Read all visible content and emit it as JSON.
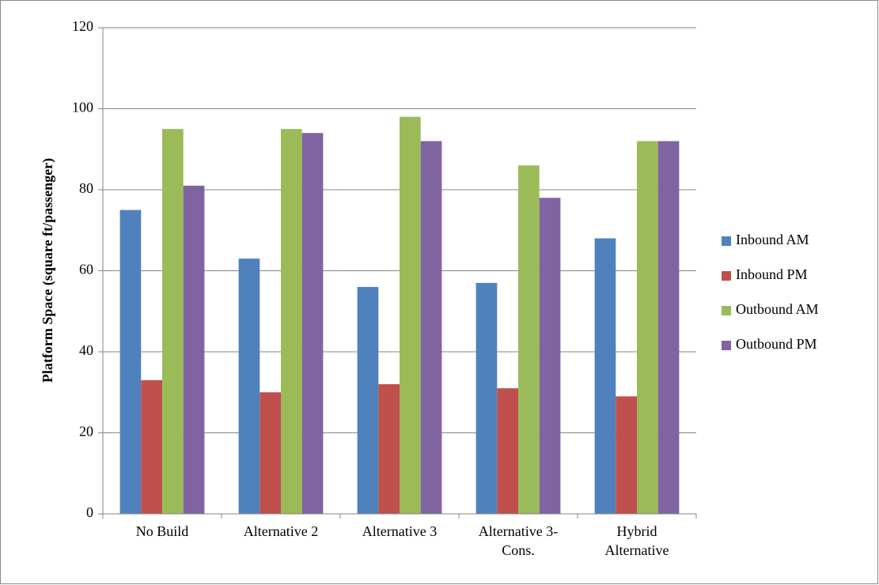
{
  "chart_data": {
    "type": "bar",
    "y_label": "Platform Space (square ft/passenger)",
    "categories": [
      "No Build",
      "Alternative 2",
      "Alternative 3",
      "Alternative 3-\nCons.",
      "Hybrid\nAlternative"
    ],
    "series": [
      {
        "name": "Inbound AM",
        "color": "#4f81bd",
        "values": [
          75,
          63,
          56,
          57,
          68
        ]
      },
      {
        "name": "Inbound PM",
        "color": "#c0504d",
        "values": [
          33,
          30,
          32,
          31,
          29
        ]
      },
      {
        "name": "Outbound AM",
        "color": "#9bbb59",
        "values": [
          95,
          95,
          98,
          86,
          92
        ]
      },
      {
        "name": "Outbound PM",
        "color": "#8064a2",
        "values": [
          81,
          94,
          92,
          78,
          92
        ]
      }
    ],
    "ylim": [
      0,
      120
    ],
    "yticks": [
      0,
      20,
      40,
      60,
      80,
      100,
      120
    ],
    "grid": true,
    "legend": "right"
  }
}
